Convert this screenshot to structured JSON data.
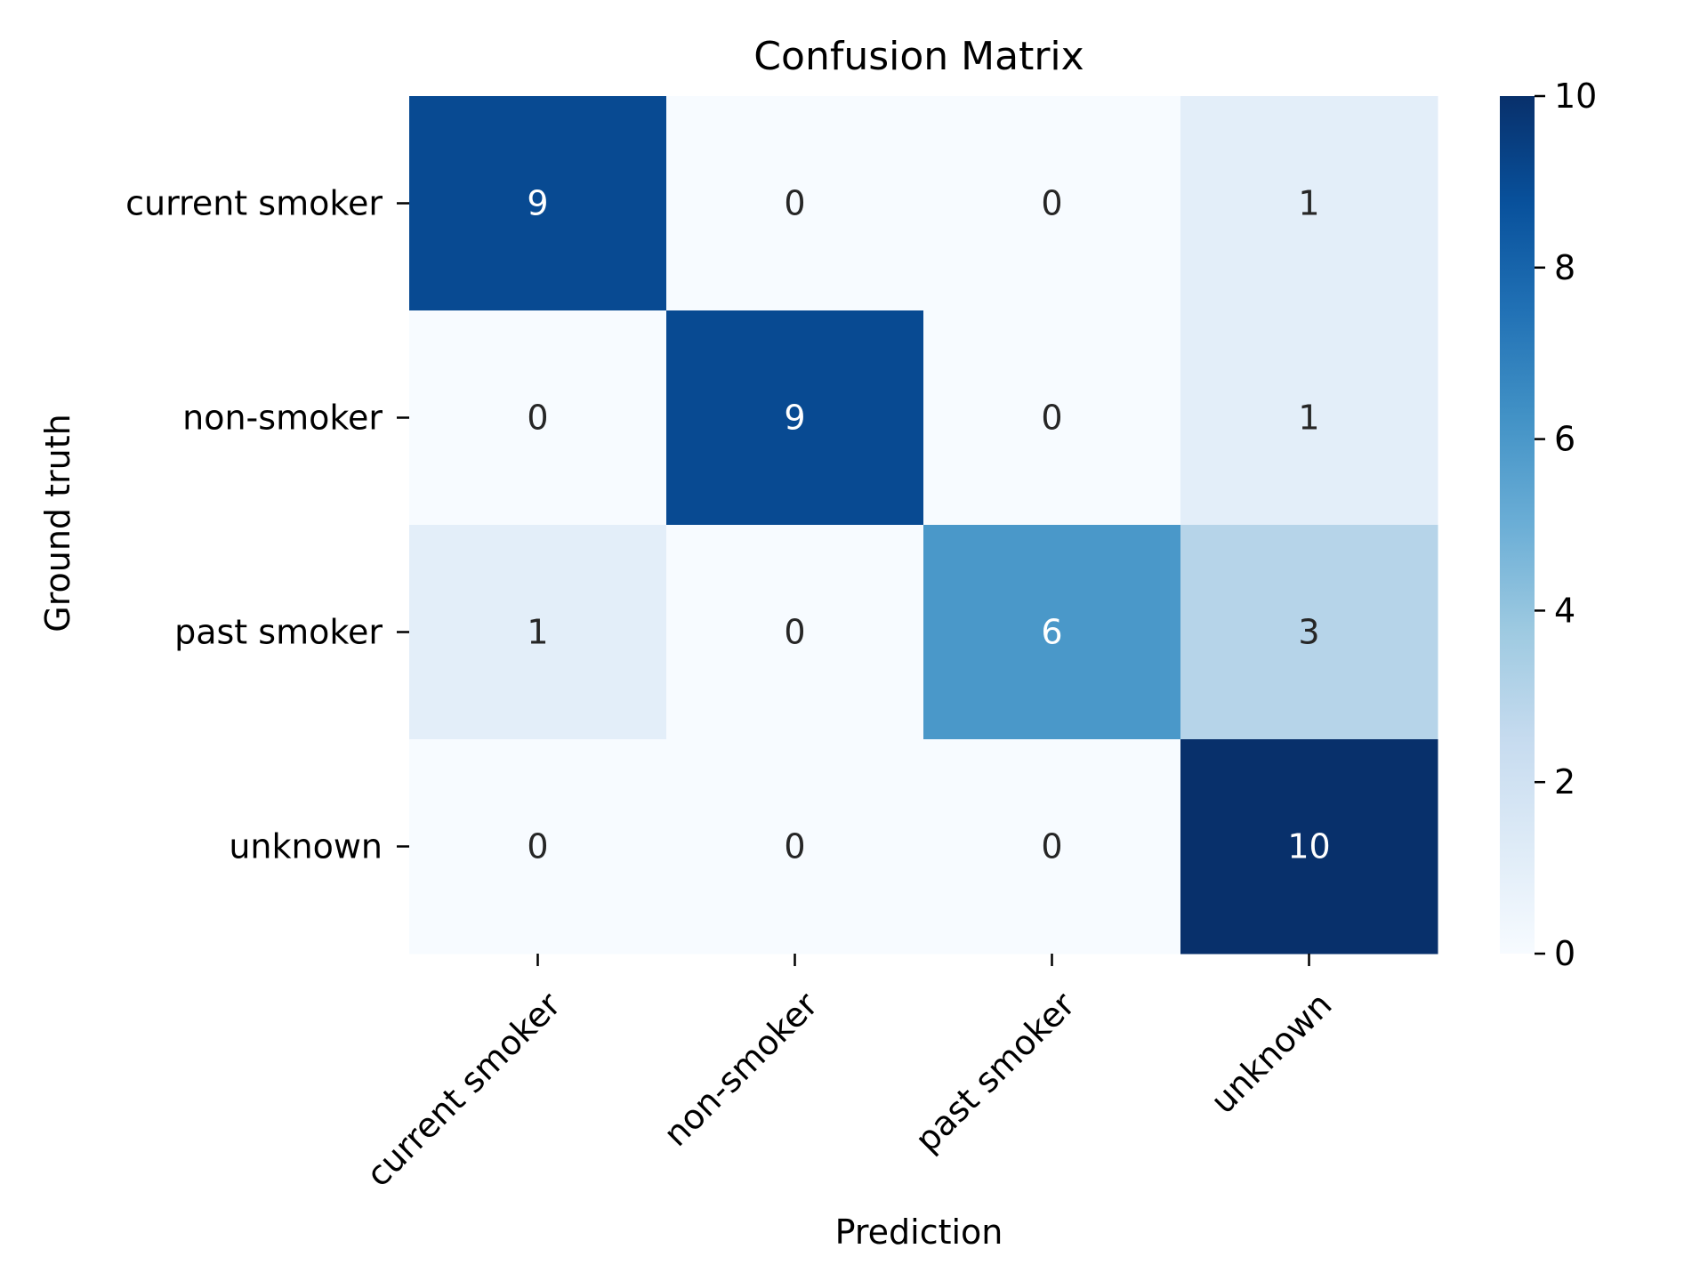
{
  "chart_data": {
    "type": "heatmap",
    "title": "Confusion Matrix",
    "xlabel": "Prediction",
    "ylabel": "Ground truth",
    "x_categories": [
      "current smoker",
      "non-smoker",
      "past smoker",
      "unknown"
    ],
    "y_categories": [
      "current smoker",
      "non-smoker",
      "past smoker",
      "unknown"
    ],
    "values": [
      [
        9,
        0,
        0,
        1
      ],
      [
        0,
        9,
        0,
        1
      ],
      [
        1,
        0,
        6,
        3
      ],
      [
        0,
        0,
        0,
        10
      ]
    ],
    "colorbar": {
      "min": 0,
      "max": 10,
      "ticks": [
        0,
        2,
        4,
        6,
        8,
        10
      ],
      "colormap": "Blues"
    },
    "colors": {
      "text_dark": "#262626",
      "text_light": "#ffffff",
      "low": "#f7fbff",
      "high": "#08306b"
    }
  }
}
